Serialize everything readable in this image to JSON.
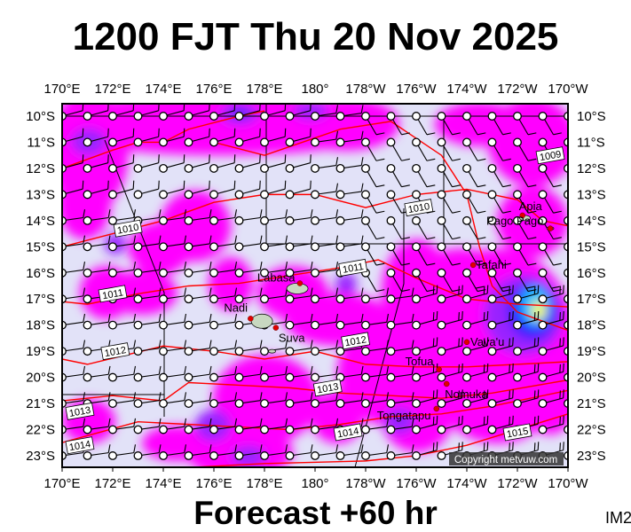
{
  "title": "1200 FJT Thu 20 Nov 2025",
  "footer": "Forecast +60 hr",
  "image_code": "IM2",
  "copyright": "Copyright metvuw.com",
  "axes": {
    "lon_labels": [
      "170°E",
      "172°E",
      "174°E",
      "176°E",
      "178°E",
      "180°",
      "178°W",
      "176°W",
      "174°W",
      "172°W",
      "170°W"
    ],
    "lat_labels": [
      "10°S",
      "11°S",
      "12°S",
      "13°S",
      "14°S",
      "15°S",
      "16°S",
      "17°S",
      "18°S",
      "19°S",
      "20°S",
      "21°S",
      "22°S",
      "23°S"
    ],
    "lon_range_east": [
      170,
      190
    ],
    "lat_range_south": [
      10,
      23
    ]
  },
  "places": [
    {
      "name": "Apia",
      "lon": 188.2,
      "lat": 13.8
    },
    {
      "name": "Pago Pago",
      "lon": 189.3,
      "lat": 14.3
    },
    {
      "name": "Tafahi",
      "lon": 186.25,
      "lat": 15.7
    },
    {
      "name": "Labasa",
      "lon": 179.4,
      "lat": 16.4
    },
    {
      "name": "Nadi",
      "lon": 177.45,
      "lat": 17.75
    },
    {
      "name": "Suva",
      "lon": 178.45,
      "lat": 18.1
    },
    {
      "name": "Vava'u",
      "lon": 186.0,
      "lat": 18.65
    },
    {
      "name": "Tofua",
      "lon": 184.9,
      "lat": 19.7
    },
    {
      "name": "Nomuka",
      "lon": 185.2,
      "lat": 20.25
    },
    {
      "name": "Tongatapu",
      "lon": 184.8,
      "lat": 21.2
    }
  ],
  "isobar_labels": [
    "1009",
    "1010",
    "1010",
    "1011",
    "1011",
    "1012",
    "1012",
    "1013",
    "1013",
    "1014",
    "1014",
    "1015"
  ],
  "colors": {
    "background": "#e2e2f8",
    "rain_light": "#ff00ff",
    "rain_moderate": "#9a20ff",
    "rain_heavy": "#2020ff",
    "rain_very_heavy": "#00c0ff",
    "rain_extreme": "#ffff00",
    "isobar": "#ff0000",
    "place_dot": "#e00000"
  }
}
